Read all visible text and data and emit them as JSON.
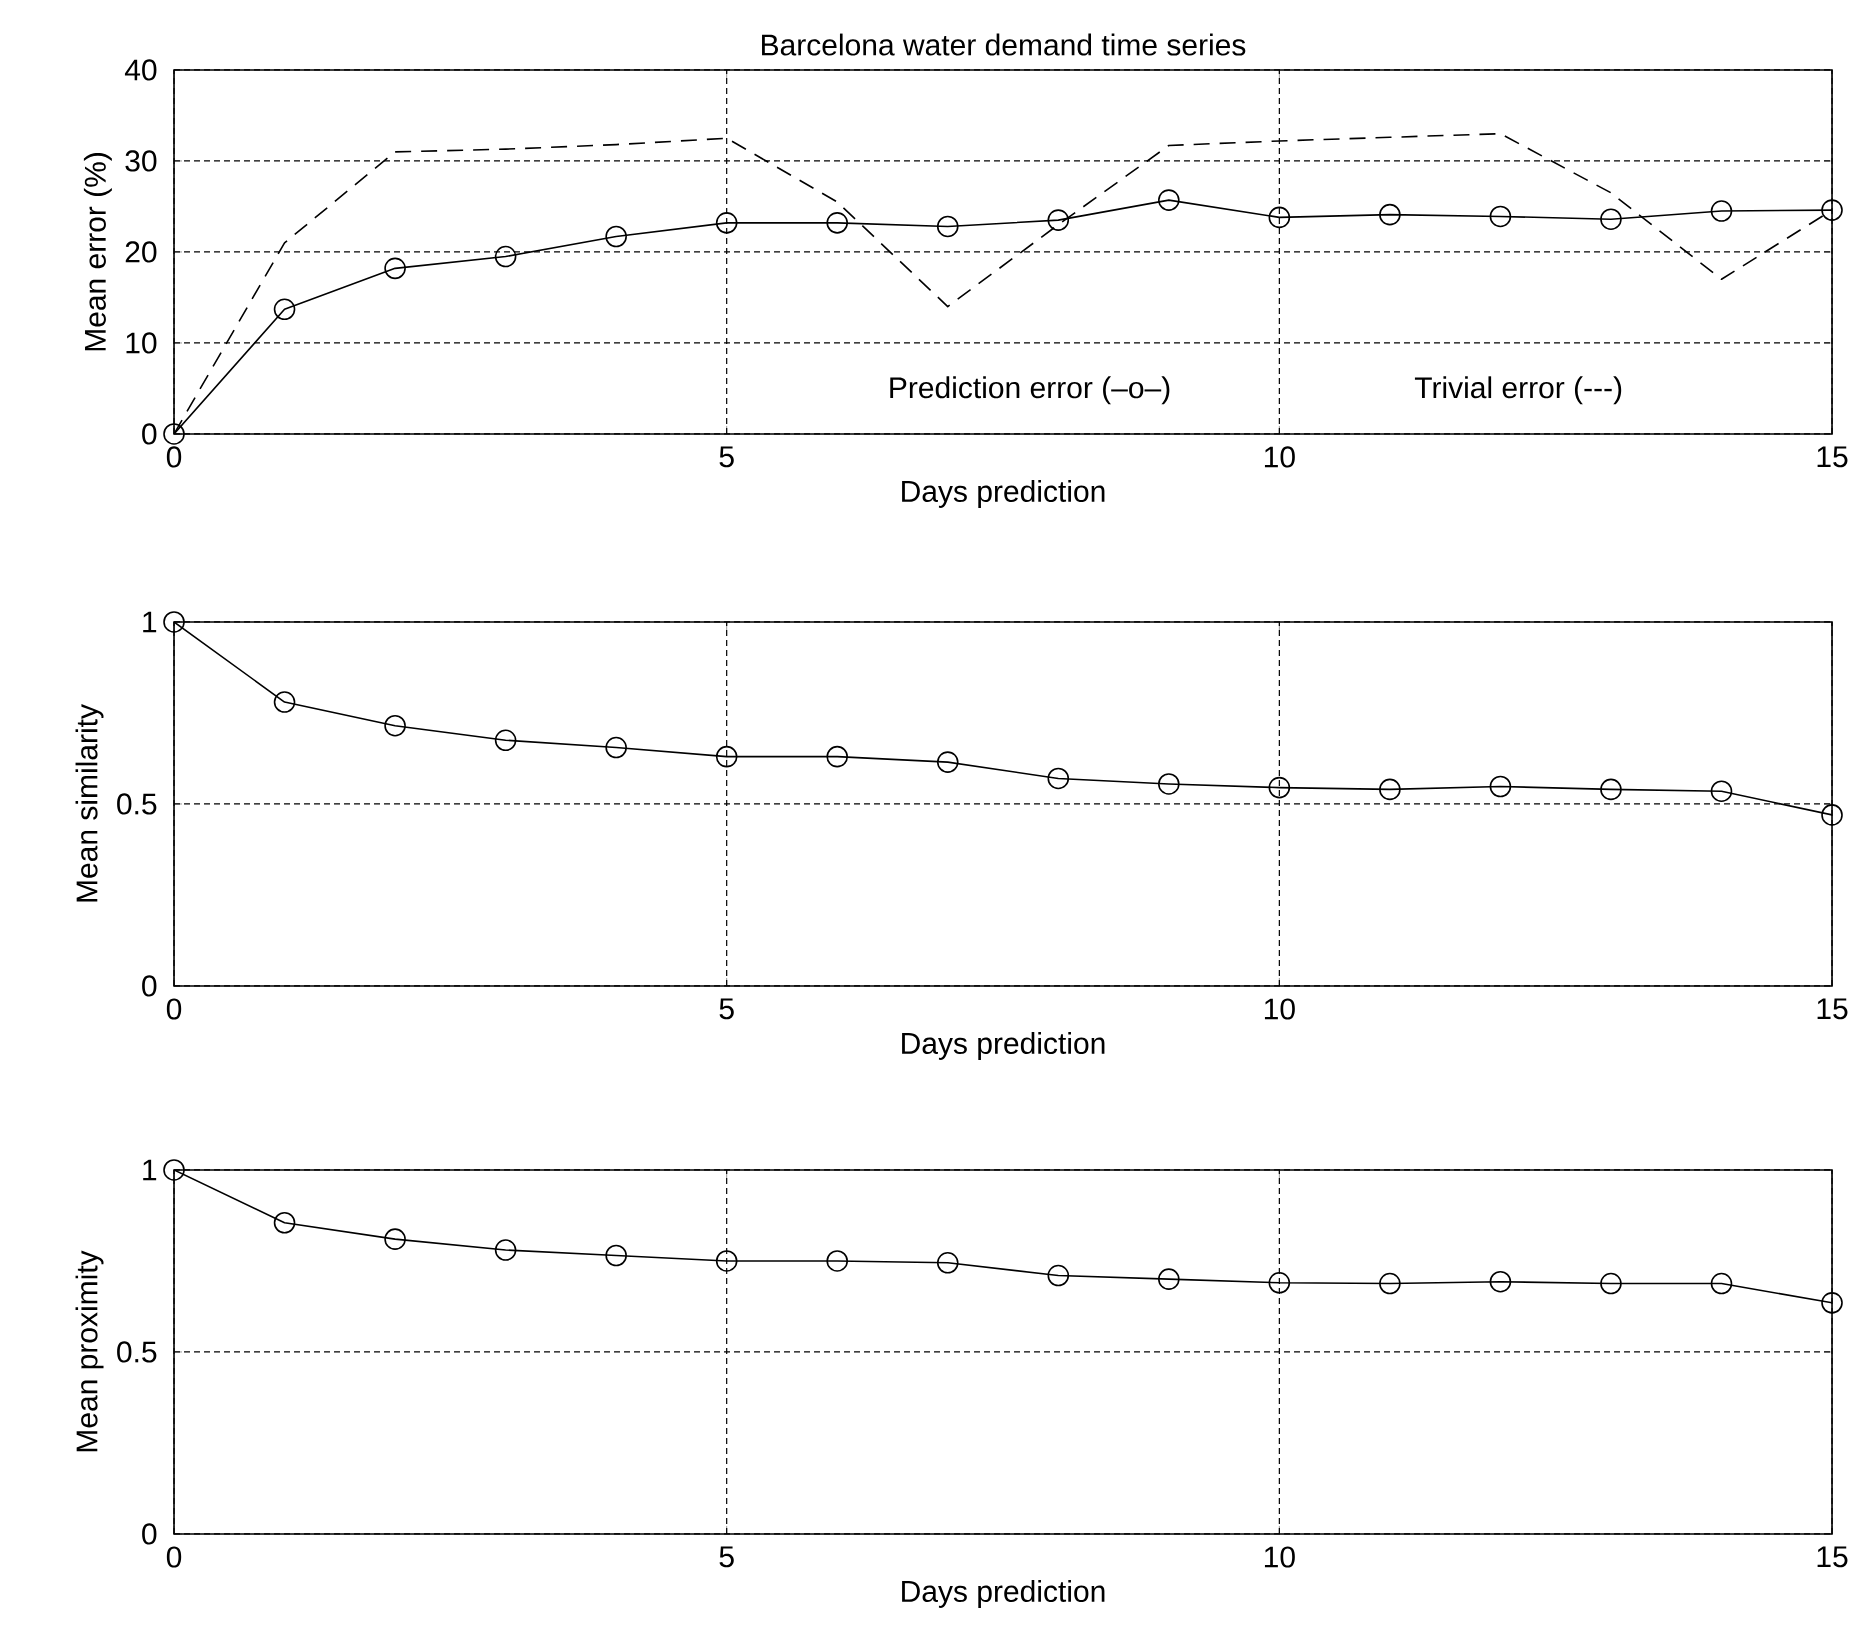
{
  "chart_data": [
    {
      "type": "line",
      "title": "Barcelona water demand time series",
      "xlabel": "Days prediction",
      "ylabel": "Mean error (%)",
      "x": [
        0,
        1,
        2,
        3,
        4,
        5,
        6,
        7,
        8,
        9,
        10,
        11,
        12,
        13,
        14,
        15
      ],
      "series": [
        {
          "color": "#000000",
          "marker": "circle",
          "line_style": "solid",
          "values": [
            0,
            13.7,
            18.2,
            19.5,
            21.7,
            23.2,
            23.2,
            22.8,
            23.5,
            25.7,
            23.8,
            24.1,
            23.9,
            23.6,
            24.5,
            24.6
          ]
        },
        {
          "color": "#000000",
          "marker": "none",
          "line_style": "dashed",
          "values": [
            0,
            21,
            31,
            31.3,
            31.8,
            32.5,
            25.5,
            14,
            23,
            31.7,
            32.2,
            32.6,
            33,
            26.5,
            17,
            24.6
          ]
        }
      ],
      "xlim": [
        0,
        15
      ],
      "xticks": [
        0,
        5,
        10,
        15
      ],
      "ylim": [
        0,
        40
      ],
      "yticks": [
        0,
        10,
        20,
        30,
        40
      ],
      "grid": true,
      "annotations": [
        "Prediction error (–o–)",
        "Trivial error (---)"
      ]
    },
    {
      "type": "line",
      "xlabel": "Days prediction",
      "ylabel": "Mean similarity",
      "x": [
        0,
        1,
        2,
        3,
        4,
        5,
        6,
        7,
        8,
        9,
        10,
        11,
        12,
        13,
        14,
        15
      ],
      "series": [
        {
          "color": "#000000",
          "marker": "circle",
          "line_style": "solid",
          "values": [
            1,
            0.78,
            0.715,
            0.675,
            0.655,
            0.63,
            0.63,
            0.615,
            0.57,
            0.555,
            0.545,
            0.54,
            0.548,
            0.54,
            0.535,
            0.47
          ]
        }
      ],
      "xlim": [
        0,
        15
      ],
      "xticks": [
        0,
        5,
        10,
        15
      ],
      "ylim": [
        0,
        1
      ],
      "yticks": [
        0,
        0.5,
        1
      ],
      "grid": true
    },
    {
      "type": "line",
      "xlabel": "Days prediction",
      "ylabel": "Mean proximity",
      "x": [
        0,
        1,
        2,
        3,
        4,
        5,
        6,
        7,
        8,
        9,
        10,
        11,
        12,
        13,
        14,
        15
      ],
      "series": [
        {
          "color": "#000000",
          "marker": "circle",
          "line_style": "solid",
          "values": [
            1,
            0.855,
            0.81,
            0.78,
            0.765,
            0.75,
            0.75,
            0.745,
            0.71,
            0.7,
            0.69,
            0.688,
            0.693,
            0.688,
            0.688,
            0.635
          ]
        }
      ],
      "xlim": [
        0,
        15
      ],
      "xticks": [
        0,
        5,
        10,
        15
      ],
      "ylim": [
        0,
        1
      ],
      "yticks": [
        0,
        0.5,
        1
      ],
      "grid": true
    }
  ]
}
